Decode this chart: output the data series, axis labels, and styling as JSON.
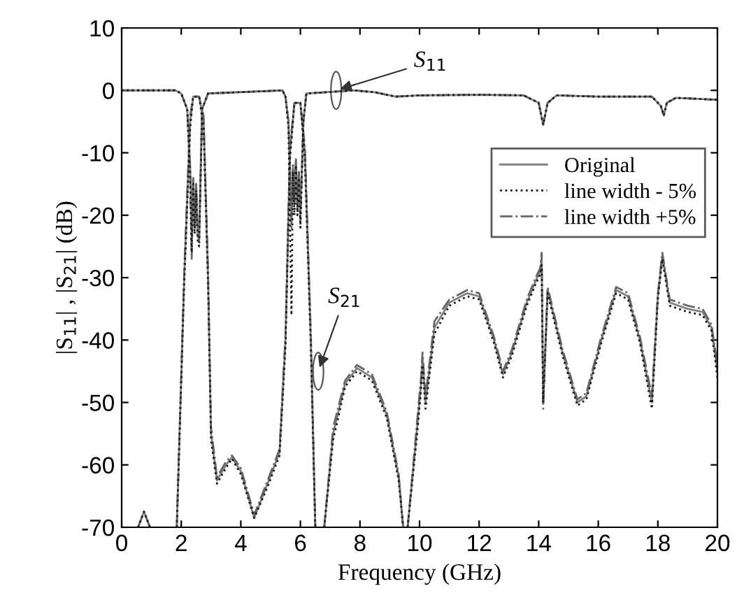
{
  "chart_data": {
    "type": "line",
    "xlabel": "Frequency (GHz)",
    "ylabel": "|S$_{11}$| , |S$_{21}$| (dB)",
    "xlim": [
      0,
      20
    ],
    "ylim": [
      -70,
      10
    ],
    "xticks": [
      0,
      2,
      4,
      6,
      8,
      10,
      12,
      14,
      16,
      18,
      20
    ],
    "yticks": [
      -70,
      -60,
      -50,
      -40,
      -30,
      -20,
      -10,
      0,
      10
    ],
    "grid": false,
    "legend": "right",
    "marker": "none",
    "series": [
      {
        "name": "Original",
        "color": "#808080",
        "line_style": "solid",
        "x": [
          0,
          1.8,
          2.0,
          2.2,
          2.3,
          2.35,
          2.4,
          2.45,
          2.5,
          2.55,
          2.6,
          2.7,
          2.9,
          5.4,
          5.5,
          5.6,
          5.7,
          5.75,
          5.8,
          5.85,
          5.9,
          5.95,
          6.0,
          6.1,
          6.2,
          7.8,
          8.5,
          9.2,
          10,
          12,
          13.5,
          14.0,
          14.15,
          14.3,
          14.6,
          16,
          17.8,
          18.1,
          18.2,
          18.3,
          18.6,
          20
        ],
        "values": [
          0,
          0,
          -0.5,
          -3,
          -12,
          -24,
          -14,
          -22,
          -15,
          -23,
          -24,
          -3,
          -0.5,
          0,
          -1,
          -5,
          -20,
          -12,
          -18,
          -11,
          -19,
          -13,
          -20,
          -5,
          -0.5,
          0,
          -0.3,
          -1,
          -0.8,
          -0.7,
          -0.8,
          -2,
          -5.5,
          -2,
          -0.8,
          -1,
          -1,
          -2.5,
          -4,
          -2,
          -1.2,
          -1.5
        ]
      },
      {
        "color": "#808080",
        "line_style": "solid",
        "x": [
          0.55,
          0.75,
          0.95,
          1.4,
          1.85,
          2.1,
          2.3,
          2.4,
          2.6,
          2.75,
          2.9,
          3.0,
          3.2,
          3.5,
          3.7,
          4.0,
          4.45,
          4.9,
          5.3,
          5.5,
          5.65,
          5.8,
          6.0,
          6.15,
          6.35,
          6.5,
          6.65,
          6.8,
          7.1,
          7.5,
          7.9,
          8.4,
          8.9,
          9.3,
          9.45,
          9.5,
          9.6,
          9.9,
          10.05,
          10.1,
          10.2,
          10.5,
          11,
          11.6,
          12,
          12.5,
          12.8,
          13.1,
          13.6,
          13.9,
          14.05,
          14.1,
          14.15,
          14.3,
          14.8,
          15.3,
          15.6,
          16.1,
          16.6,
          17,
          17.4,
          17.8,
          18.0,
          18.15,
          18.4,
          19.0,
          19.5,
          19.8,
          20
        ],
        "values": [
          -70,
          -67.5,
          -70,
          null,
          -70,
          -30,
          -5,
          -1,
          -1,
          -5,
          -30,
          -55,
          -62.5,
          -60,
          -58.8,
          -61,
          -68.5,
          -63,
          -58,
          -40,
          -10,
          -2,
          -2,
          -10,
          -40,
          -70,
          null,
          -70,
          -55,
          -47,
          -44.5,
          -46,
          -52,
          -62,
          -70,
          null,
          -70,
          -55,
          -47,
          -43,
          -50,
          -38,
          -34,
          -32.5,
          -33,
          -40,
          -45.5,
          -42,
          -34,
          -30.5,
          -29,
          -27,
          -50,
          -32,
          -42,
          -50,
          -49,
          -40,
          -32,
          -33,
          -40,
          -50,
          -33,
          -26.5,
          -34,
          -35,
          -35.5,
          -38,
          -45
        ]
      },
      {
        "name": "line width - 5%",
        "color": "#1a1a1a",
        "line_style": "dotted",
        "x": [
          0,
          1.8,
          2.0,
          2.2,
          2.3,
          2.35,
          2.4,
          2.45,
          2.5,
          2.55,
          2.6,
          2.7,
          2.9,
          5.4,
          5.5,
          5.6,
          5.7,
          5.75,
          5.8,
          5.85,
          5.9,
          5.95,
          6.0,
          6.1,
          6.2,
          7.8,
          8.5,
          9.2,
          10,
          12,
          13.5,
          14.0,
          14.15,
          14.3,
          14.6,
          16,
          17.8,
          18.1,
          18.2,
          18.3,
          18.6,
          20
        ],
        "values": [
          0,
          0,
          -0.5,
          -3,
          -14,
          -26,
          -15,
          -23,
          -16,
          -24,
          -25,
          -3,
          -0.5,
          0,
          -1,
          -6,
          -36,
          -13,
          -20,
          -12,
          -20,
          -14,
          -22,
          -5,
          -0.5,
          0,
          -0.3,
          -1,
          -0.8,
          -0.7,
          -0.8,
          -2,
          -5.5,
          -2,
          -0.8,
          -1,
          -1,
          -2.5,
          -4,
          -2,
          -1.2,
          -1.5
        ]
      },
      {
        "color": "#1a1a1a",
        "line_style": "dotted",
        "x": [
          0.55,
          0.75,
          0.95,
          1.4,
          1.85,
          2.1,
          2.3,
          2.4,
          2.6,
          2.75,
          2.9,
          3.0,
          3.2,
          3.5,
          3.7,
          4.0,
          4.45,
          4.9,
          5.3,
          5.5,
          5.65,
          5.8,
          6.0,
          6.15,
          6.35,
          6.5,
          6.65,
          6.8,
          7.1,
          7.5,
          7.9,
          8.4,
          8.9,
          9.3,
          9.45,
          9.5,
          9.6,
          9.9,
          10.05,
          10.1,
          10.2,
          10.5,
          11,
          11.6,
          12,
          12.5,
          12.8,
          13.1,
          13.6,
          13.9,
          14.05,
          14.1,
          14.15,
          14.3,
          14.8,
          15.3,
          15.6,
          16.1,
          16.6,
          17,
          17.4,
          17.8,
          18.0,
          18.15,
          18.4,
          19.0,
          19.5,
          19.8,
          20
        ],
        "values": [
          -70,
          -67.5,
          -70,
          null,
          -70,
          -31,
          -6,
          -1,
          -1,
          -6,
          -31,
          -56,
          -63,
          -60.5,
          -59,
          -61.5,
          -68.5,
          -63.5,
          -58.5,
          -41,
          -11,
          -2,
          -2,
          -11,
          -41,
          -70,
          null,
          -70,
          -56,
          -47.5,
          -45,
          -46.5,
          -52.5,
          -62.5,
          -70,
          null,
          -70,
          -56,
          -48,
          -44,
          -51,
          -39,
          -34.5,
          -33,
          -33.5,
          -40.5,
          -46,
          -42.5,
          -34.5,
          -31,
          -29.5,
          -28,
          -50,
          -32.5,
          -42.5,
          -50.5,
          -49.5,
          -40.5,
          -32.5,
          -33.5,
          -40.5,
          -51,
          -33.5,
          -27,
          -34.5,
          -35.5,
          -36,
          -38.5,
          -46
        ]
      },
      {
        "name": "line width +5%",
        "color": "#666666",
        "line_style": "dashed",
        "x": [
          0,
          1.8,
          2.0,
          2.2,
          2.3,
          2.35,
          2.4,
          2.45,
          2.5,
          2.55,
          2.6,
          2.7,
          2.9,
          5.4,
          5.5,
          5.6,
          5.7,
          5.75,
          5.8,
          5.85,
          5.9,
          5.95,
          6.0,
          6.1,
          6.2,
          7.8,
          8.5,
          9.2,
          10,
          12,
          13.5,
          14.0,
          14.15,
          14.3,
          14.6,
          16,
          17.8,
          18.1,
          18.2,
          18.3,
          18.6,
          20
        ],
        "values": [
          0,
          0,
          -0.5,
          -3,
          -13,
          -27,
          -14,
          -22,
          -15,
          -23,
          -24,
          -3,
          -0.5,
          0,
          -1,
          -5,
          -22,
          -12,
          -18,
          -11,
          -19,
          -13,
          -21,
          -5,
          -0.5,
          0,
          -0.3,
          -1,
          -0.8,
          -0.7,
          -0.8,
          -2,
          -5.5,
          -2,
          -0.8,
          -1,
          -1,
          -2.5,
          -4,
          -2,
          -1.2,
          -1.5
        ]
      },
      {
        "color": "#666666",
        "line_style": "dashed",
        "x": [
          0.55,
          0.75,
          0.95,
          1.4,
          1.85,
          2.1,
          2.3,
          2.4,
          2.6,
          2.75,
          2.9,
          3.0,
          3.2,
          3.5,
          3.7,
          4.0,
          4.45,
          4.9,
          5.3,
          5.5,
          5.65,
          5.8,
          6.0,
          6.15,
          6.35,
          6.5,
          6.65,
          6.8,
          7.1,
          7.5,
          7.9,
          8.4,
          8.9,
          9.3,
          9.45,
          9.5,
          9.6,
          9.9,
          10.05,
          10.1,
          10.2,
          10.5,
          11,
          11.6,
          12,
          12.5,
          12.8,
          13.1,
          13.6,
          13.9,
          14.05,
          14.1,
          14.15,
          14.3,
          14.8,
          15.3,
          15.6,
          16.1,
          16.6,
          17,
          17.4,
          17.8,
          18.0,
          18.15,
          18.4,
          19.0,
          19.5,
          19.8,
          20
        ],
        "values": [
          -70,
          -67.5,
          -70,
          null,
          -70,
          -29,
          -4,
          -1,
          -1,
          -4,
          -29,
          -54,
          -62,
          -59.5,
          -58.5,
          -60.5,
          -68,
          -62.5,
          -57.5,
          -39,
          -9,
          -2,
          -2,
          -9,
          -39,
          -70,
          null,
          -70,
          -54,
          -46.5,
          -44,
          -45.5,
          -51.5,
          -61.5,
          -70,
          null,
          -70,
          -54,
          -46,
          -42,
          -49,
          -37,
          -33.5,
          -32,
          -32.5,
          -39.5,
          -45,
          -41.5,
          -33.5,
          -30,
          -28.5,
          -26,
          -51,
          -31.5,
          -41.5,
          -49.5,
          -48.5,
          -39.5,
          -31.5,
          -32.5,
          -39.5,
          -49,
          -32.5,
          -26,
          -33.5,
          -34.5,
          -35,
          -37.5,
          -44
        ]
      }
    ],
    "annotations": [
      {
        "text": "S$_{11}$",
        "x": 7.2,
        "y": 0
      },
      {
        "text": "S$_{21}$",
        "x": 6.6,
        "y": -45
      }
    ]
  }
}
